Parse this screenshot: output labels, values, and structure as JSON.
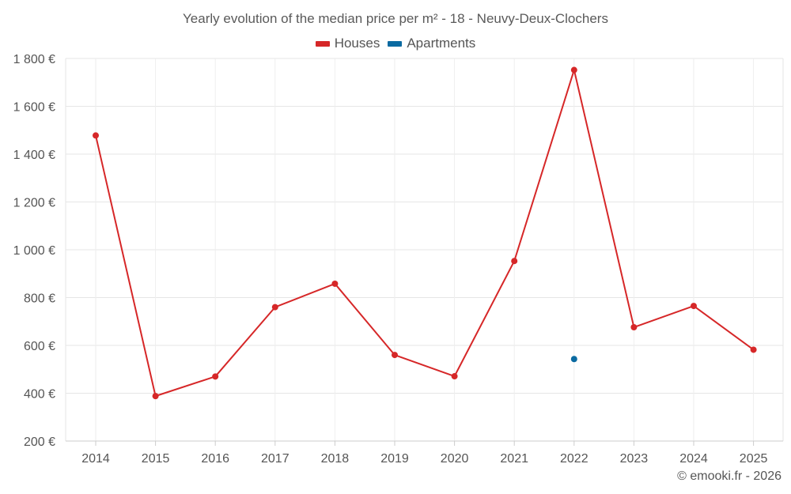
{
  "chart_data": {
    "type": "line",
    "title": "Yearly evolution of the median price per m² - 18 - Neuvy-Deux-Clochers",
    "categories": [
      "2014",
      "2015",
      "2016",
      "2017",
      "2018",
      "2019",
      "2020",
      "2021",
      "2022",
      "2023",
      "2024",
      "2025"
    ],
    "series": [
      {
        "name": "Houses",
        "color": "#d62728",
        "values": [
          1478,
          388,
          470,
          760,
          858,
          560,
          471,
          953,
          1752,
          676,
          765,
          582
        ]
      },
      {
        "name": "Apartments",
        "color": "#0a6aa1",
        "values": [
          null,
          null,
          null,
          null,
          null,
          null,
          null,
          null,
          543,
          null,
          null,
          null
        ]
      }
    ],
    "ylim": [
      200,
      1800
    ],
    "yticks": [
      200,
      400,
      600,
      800,
      1000,
      1200,
      1400,
      1600,
      1800
    ],
    "ytick_labels": [
      "200 €",
      "400 €",
      "600 €",
      "800 €",
      "1 000 €",
      "1 200 €",
      "1 400 €",
      "1 600 €",
      "1 800 €"
    ],
    "grid": true,
    "legend_position": "top-center"
  },
  "legend": {
    "houses_label": "Houses",
    "apartments_label": "Apartments",
    "houses_color": "#d62728",
    "apartments_color": "#0a6aa1"
  },
  "footer": {
    "copyright": "© emooki.fr - 2026"
  }
}
